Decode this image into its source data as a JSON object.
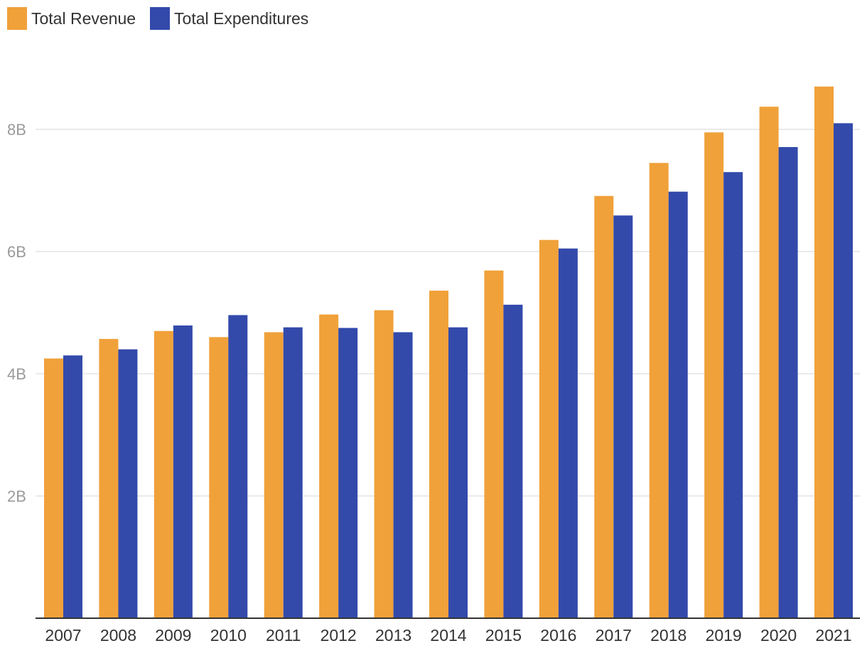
{
  "chart_data": {
    "type": "bar",
    "title": "",
    "xlabel": "",
    "ylabel": "",
    "ylim": [
      0,
      9.1
    ],
    "y_ticks": [
      2,
      4,
      6,
      8
    ],
    "y_tick_labels": [
      "2B",
      "4B",
      "6B",
      "8B"
    ],
    "grid": true,
    "legend_position": "top-left",
    "categories": [
      "2007",
      "2008",
      "2009",
      "2010",
      "2011",
      "2012",
      "2013",
      "2014",
      "2015",
      "2016",
      "2017",
      "2018",
      "2019",
      "2020",
      "2021"
    ],
    "series": [
      {
        "name": "Total Revenue",
        "color": "#f0a13a",
        "values": [
          4.25,
          4.57,
          4.7,
          4.6,
          4.68,
          4.97,
          5.04,
          5.36,
          5.69,
          6.19,
          6.91,
          7.45,
          7.95,
          8.37,
          8.7
        ]
      },
      {
        "name": "Total Expenditures",
        "color": "#334aab",
        "values": [
          4.3,
          4.4,
          4.79,
          4.96,
          4.76,
          4.75,
          4.68,
          4.76,
          5.13,
          6.05,
          6.59,
          6.98,
          7.3,
          7.71,
          8.1
        ]
      }
    ]
  }
}
